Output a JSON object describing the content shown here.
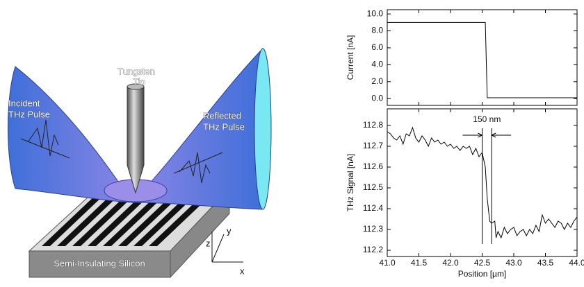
{
  "diagram": {
    "tip_label": [
      "Tungsten",
      "Tip"
    ],
    "incident_label": [
      "Incident",
      "THz Pulse"
    ],
    "reflected_label": [
      "Reflected",
      "THz Pulse"
    ],
    "substrate_label": "Semi-Insulating Silicon",
    "axes": {
      "z": "z",
      "y": "y",
      "x": "x"
    }
  },
  "chart_data": [
    {
      "type": "line",
      "ylabel": "Current [nA]",
      "color": "#000000",
      "x": [
        41.0,
        42.55,
        42.58,
        44.0
      ],
      "values": [
        9.0,
        9.0,
        0.1,
        0.1
      ],
      "xlim": [
        41.0,
        44.0
      ],
      "ylim": [
        -0.8,
        10.5
      ],
      "yticks": [
        {
          "value": 0,
          "label": "0.0"
        },
        {
          "value": 2,
          "label": "2.0"
        },
        {
          "value": 4,
          "label": "4.0"
        },
        {
          "value": 6,
          "label": "6.0"
        },
        {
          "value": 8,
          "label": "8.0"
        },
        {
          "value": 10,
          "label": "10.0"
        }
      ]
    },
    {
      "type": "line",
      "ylabel": "THz Signal [nA]",
      "xlabel": "Position [µm]",
      "color": "#000000",
      "x": [
        41.0,
        41.05,
        41.1,
        41.15,
        41.2,
        41.25,
        41.3,
        41.35,
        41.4,
        41.45,
        41.5,
        41.55,
        41.6,
        41.65,
        41.7,
        41.75,
        41.8,
        41.85,
        41.9,
        41.95,
        42.0,
        42.05,
        42.1,
        42.15,
        42.2,
        42.25,
        42.3,
        42.35,
        42.4,
        42.45,
        42.5,
        42.55,
        42.58,
        42.62,
        42.65,
        42.7,
        42.72,
        42.75,
        42.8,
        42.85,
        42.9,
        42.95,
        43.0,
        43.05,
        43.1,
        43.15,
        43.2,
        43.25,
        43.3,
        43.35,
        43.4,
        43.45,
        43.5,
        43.55,
        43.6,
        43.65,
        43.7,
        43.75,
        43.8,
        43.85,
        43.9,
        43.95,
        44.0
      ],
      "values": [
        112.77,
        112.76,
        112.74,
        112.73,
        112.75,
        112.71,
        112.76,
        112.75,
        112.79,
        112.74,
        112.72,
        112.75,
        112.73,
        112.7,
        112.74,
        112.72,
        112.73,
        112.71,
        112.72,
        112.7,
        112.71,
        112.69,
        112.7,
        112.68,
        112.7,
        112.69,
        112.7,
        112.66,
        112.69,
        112.65,
        112.67,
        112.6,
        112.45,
        112.34,
        112.33,
        112.34,
        112.26,
        112.29,
        112.26,
        112.31,
        112.28,
        112.3,
        112.31,
        112.27,
        112.29,
        112.3,
        112.27,
        112.3,
        112.28,
        112.32,
        112.29,
        112.37,
        112.33,
        112.35,
        112.33,
        112.31,
        112.34,
        112.33,
        112.3,
        112.33,
        112.31,
        112.34,
        112.36
      ],
      "xlim": [
        41.0,
        44.0
      ],
      "ylim": [
        112.17,
        112.88
      ],
      "xticks": [
        {
          "value": 41,
          "label": "41.0"
        },
        41.5,
        {
          "value": 42,
          "label": "42.0"
        },
        42.5,
        {
          "value": 43,
          "label": "43.0"
        },
        43.5,
        {
          "value": 44,
          "label": "44.0"
        }
      ],
      "yticks": [
        112.2,
        112.3,
        112.4,
        112.5,
        112.6,
        112.7,
        112.8
      ],
      "annotation": {
        "text": "150 nm",
        "x": [
          42.5,
          42.65
        ]
      }
    }
  ]
}
